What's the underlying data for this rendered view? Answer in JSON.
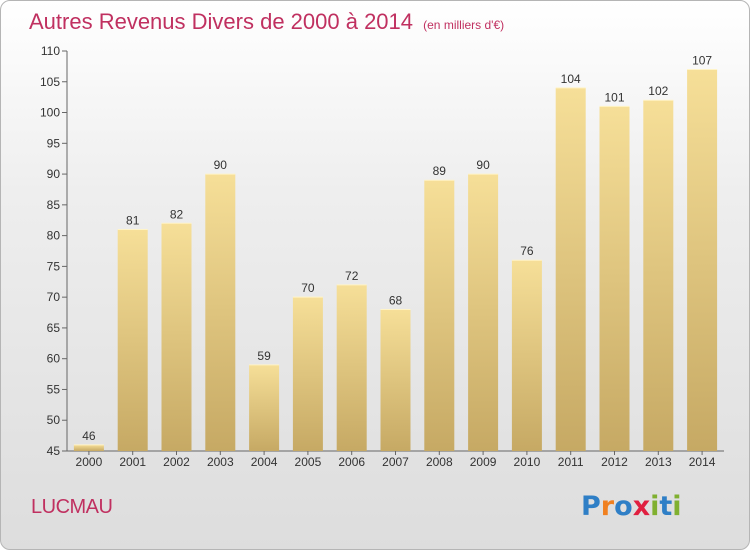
{
  "header": {
    "title": "Autres Revenus Divers de 2000 à 2014",
    "subtitle": "(en milliers d'€)"
  },
  "footer": {
    "commune": "LUCMAU",
    "brand": "Proxiti",
    "brand_letters": [
      {
        "char": "P",
        "color": "#2f7fc6"
      },
      {
        "char": "r",
        "color": "#f08020"
      },
      {
        "char": "o",
        "color": "#2f7fc6"
      },
      {
        "char": "x",
        "color": "#e02040"
      },
      {
        "char": "i",
        "color": "#80b030"
      },
      {
        "char": "t",
        "color": "#2f7fc6"
      },
      {
        "char": "i",
        "color": "#80b030"
      }
    ]
  },
  "colors": {
    "bar_top": "#f6df98",
    "bar_bottom": "#c6a964",
    "accent": "#c03060",
    "axis": "#666666"
  },
  "chart_data": {
    "type": "bar",
    "title": "Autres Revenus Divers de 2000 à 2014",
    "subtitle": "(en milliers d'€)",
    "categories": [
      "2000",
      "2001",
      "2002",
      "2003",
      "2004",
      "2005",
      "2006",
      "2007",
      "2008",
      "2009",
      "2010",
      "2011",
      "2012",
      "2013",
      "2014"
    ],
    "values": [
      46,
      81,
      82,
      90,
      59,
      70,
      72,
      68,
      89,
      90,
      76,
      104,
      101,
      102,
      107
    ],
    "ylim": [
      45,
      110
    ],
    "yticks": [
      45,
      50,
      55,
      60,
      65,
      70,
      75,
      80,
      85,
      90,
      95,
      100,
      105,
      110
    ],
    "grid": false,
    "xlabel": "",
    "ylabel": ""
  }
}
